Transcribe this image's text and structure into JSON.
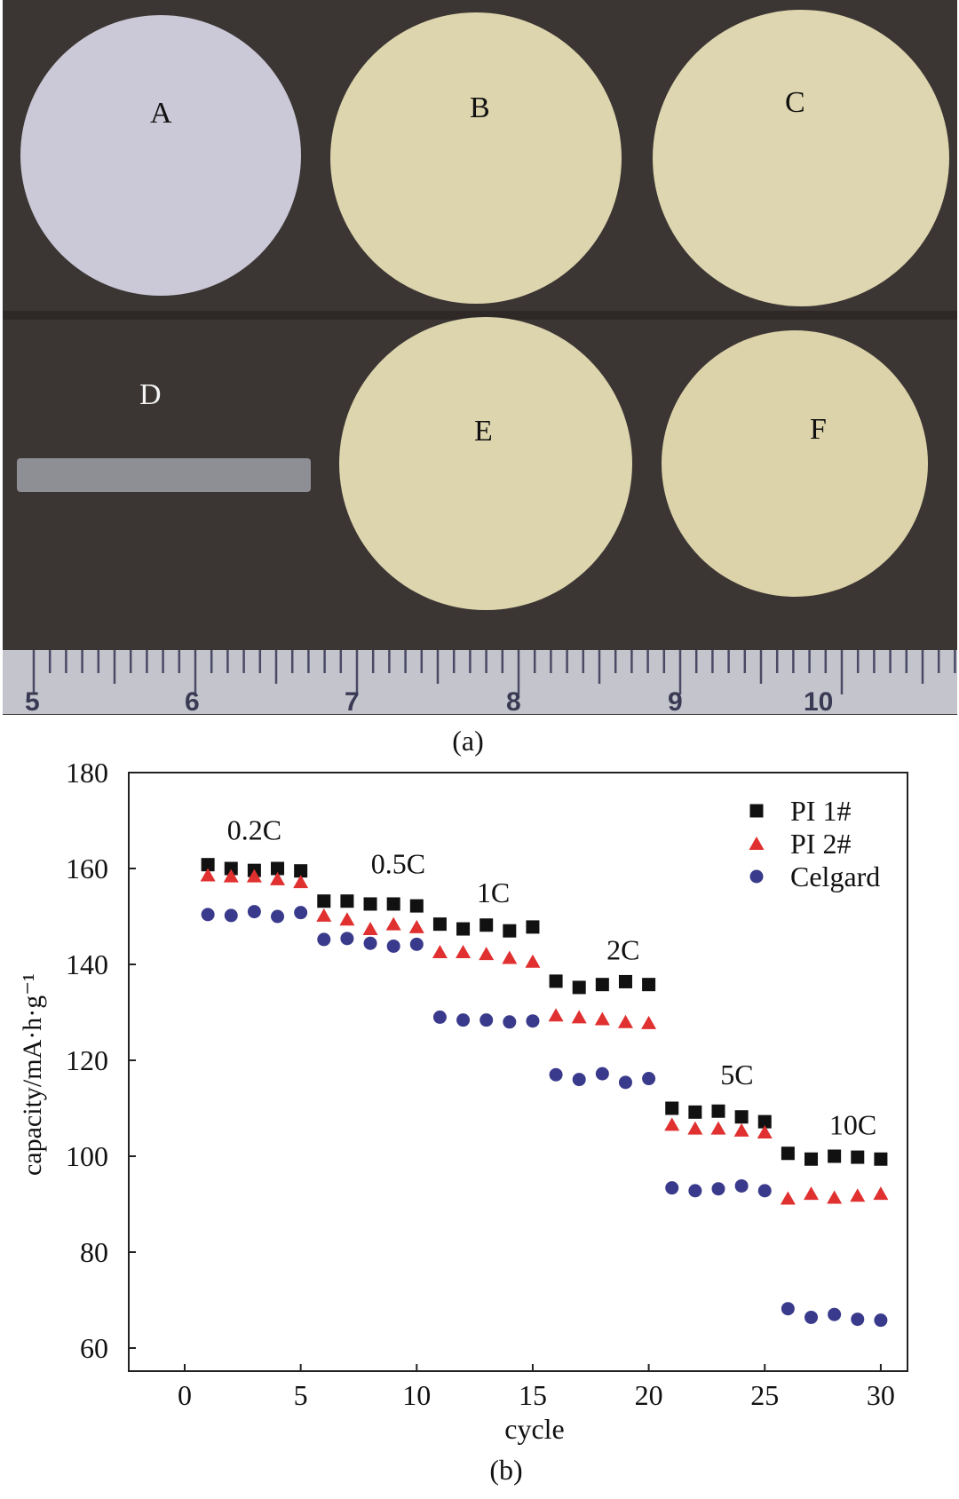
{
  "photo": {
    "caption": "(a)",
    "sample_labels": [
      "A",
      "B",
      "C",
      "D",
      "E",
      "F"
    ],
    "ruler_numbers": [
      "5",
      "6",
      "7",
      "8",
      "9",
      "10"
    ],
    "colors": {
      "background": "#3b3533",
      "sample_A": "#cbc9d8",
      "sample_BCEF": "#ddd5ae",
      "strip_D": "#8e8f95",
      "ruler": "#c4c4cc"
    }
  },
  "chart_data": {
    "type": "scatter",
    "caption": "(b)",
    "xlabel": "cycle",
    "ylabel": "capacity/mA·h·g⁻¹",
    "xlim": [
      -2.5,
      31.2
    ],
    "ylim": [
      55,
      180
    ],
    "xticks": [
      0,
      5,
      10,
      15,
      20,
      25,
      30
    ],
    "yticks": [
      60,
      80,
      100,
      120,
      140,
      160,
      180
    ],
    "grid": false,
    "legend_position": "top-right",
    "annotations": [
      {
        "text": "0.2C",
        "x": 3,
        "y": 166
      },
      {
        "text": "0.5C",
        "x": 9.2,
        "y": 159
      },
      {
        "text": "1C",
        "x": 13.3,
        "y": 153
      },
      {
        "text": "2C",
        "x": 18.9,
        "y": 141
      },
      {
        "text": "5C",
        "x": 23.8,
        "y": 115
      },
      {
        "text": "10C",
        "x": 28.8,
        "y": 104.5
      }
    ],
    "x": [
      1,
      2,
      3,
      4,
      5,
      6,
      7,
      8,
      9,
      10,
      11,
      12,
      13,
      14,
      15,
      16,
      17,
      18,
      19,
      20,
      21,
      22,
      23,
      24,
      25,
      26,
      27,
      28,
      29,
      30
    ],
    "series": [
      {
        "name": "PI 1#",
        "marker": "square",
        "color": "#111111",
        "values": [
          160.8,
          160,
          159.6,
          160,
          159.5,
          153.2,
          153.2,
          152.6,
          152.6,
          152.2,
          148.4,
          147.4,
          148.2,
          147,
          147.8,
          136.5,
          135.2,
          135.8,
          136.4,
          135.8,
          110,
          109.2,
          109.4,
          108.2,
          107.2,
          100.6,
          99.4,
          100,
          99.8,
          99.4
        ]
      },
      {
        "name": "PI 2#",
        "marker": "triangle",
        "color": "#e03030",
        "values": [
          158.6,
          158.4,
          158.4,
          157.8,
          157.2,
          150.2,
          149.4,
          147.4,
          148.4,
          147.8,
          142.6,
          142.6,
          142.2,
          141.4,
          140.6,
          129.4,
          129,
          128.6,
          128,
          127.8,
          106.6,
          105.8,
          105.8,
          105.4,
          105,
          91.2,
          92.2,
          91.4,
          91.8,
          92.2
        ]
      },
      {
        "name": "Celgard",
        "marker": "circle",
        "color": "#3a3a8c",
        "values": [
          150.4,
          150.2,
          151,
          150,
          150.8,
          145.2,
          145.4,
          144.4,
          143.8,
          144.2,
          129,
          128.4,
          128.4,
          128,
          128.2,
          117,
          116,
          117.2,
          115.4,
          116.2,
          93.4,
          92.8,
          93.2,
          93.8,
          92.8,
          68.2,
          66.4,
          67,
          66,
          65.8
        ]
      }
    ]
  }
}
